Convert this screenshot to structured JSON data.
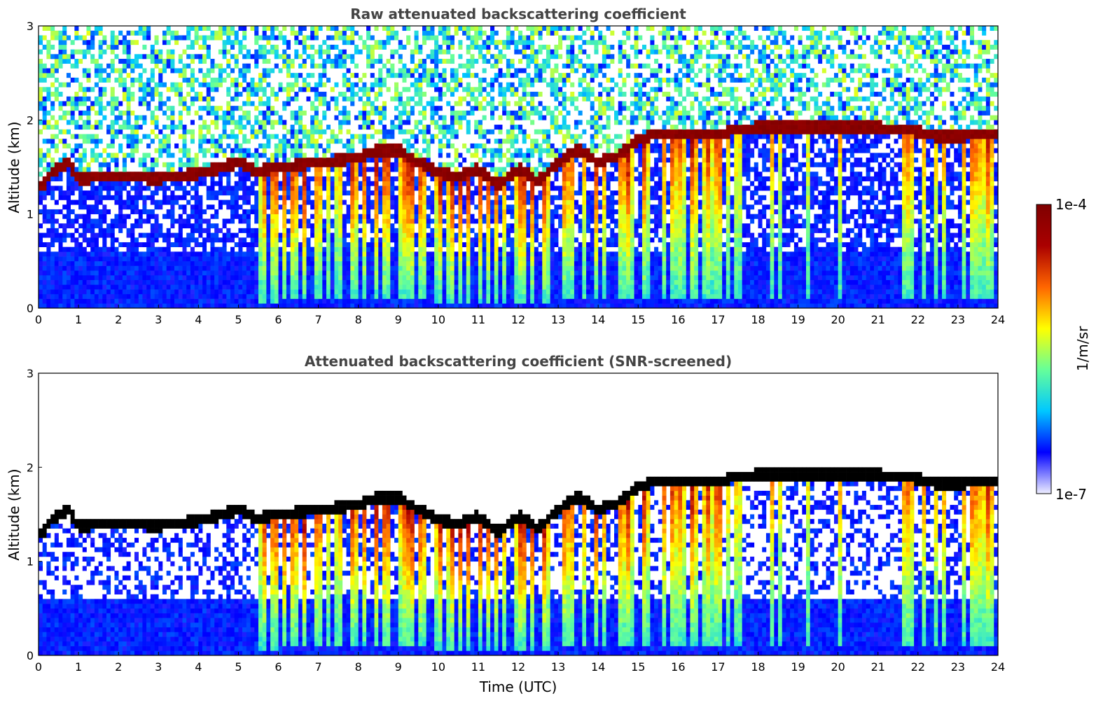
{
  "chart_data": [
    {
      "type": "heatmap",
      "title": "Raw attenuated backscattering coefficient",
      "xlabel": "",
      "ylabel": "Altitude (km)",
      "xlim": [
        0,
        24
      ],
      "ylim": [
        0,
        3
      ],
      "xticks": [
        "0",
        "1",
        "2",
        "3",
        "4",
        "5",
        "6",
        "7",
        "8",
        "9",
        "10",
        "11",
        "12",
        "13",
        "14",
        "15",
        "16",
        "17",
        "18",
        "19",
        "20",
        "21",
        "22",
        "23",
        "24"
      ],
      "yticks": [
        "0",
        "1",
        "2",
        "3"
      ],
      "screened": false,
      "cloud_base_km": [
        {
          "t": 0.1,
          "h": 1.3
        },
        {
          "t": 0.4,
          "h": 1.47
        },
        {
          "t": 0.75,
          "h": 1.55
        },
        {
          "t": 1.0,
          "h": 1.38
        },
        {
          "t": 2.0,
          "h": 1.4
        },
        {
          "t": 3.0,
          "h": 1.38
        },
        {
          "t": 4.0,
          "h": 1.43
        },
        {
          "t": 4.6,
          "h": 1.5
        },
        {
          "t": 5.0,
          "h": 1.55
        },
        {
          "t": 5.5,
          "h": 1.45
        },
        {
          "t": 6.0,
          "h": 1.5
        },
        {
          "t": 6.5,
          "h": 1.52
        },
        {
          "t": 7.0,
          "h": 1.55
        },
        {
          "t": 7.5,
          "h": 1.57
        },
        {
          "t": 8.0,
          "h": 1.6
        },
        {
          "t": 8.5,
          "h": 1.68
        },
        {
          "t": 9.0,
          "h": 1.68
        },
        {
          "t": 9.5,
          "h": 1.55
        },
        {
          "t": 10.0,
          "h": 1.45
        },
        {
          "t": 10.5,
          "h": 1.4
        },
        {
          "t": 11.0,
          "h": 1.48
        },
        {
          "t": 11.5,
          "h": 1.3
        },
        {
          "t": 12.0,
          "h": 1.48
        },
        {
          "t": 12.5,
          "h": 1.35
        },
        {
          "t": 13.0,
          "h": 1.55
        },
        {
          "t": 13.5,
          "h": 1.7
        },
        {
          "t": 14.0,
          "h": 1.55
        },
        {
          "t": 14.5,
          "h": 1.62
        },
        {
          "t": 15.0,
          "h": 1.8
        },
        {
          "t": 15.5,
          "h": 1.85
        },
        {
          "t": 16.0,
          "h": 1.85
        },
        {
          "t": 17.0,
          "h": 1.85
        },
        {
          "t": 17.5,
          "h": 1.9
        },
        {
          "t": 18.0,
          "h": 1.92
        },
        {
          "t": 19.0,
          "h": 1.92
        },
        {
          "t": 20.0,
          "h": 1.92
        },
        {
          "t": 21.0,
          "h": 1.92
        },
        {
          "t": 22.0,
          "h": 1.88
        },
        {
          "t": 22.5,
          "h": 1.82
        },
        {
          "t": 23.0,
          "h": 1.83
        },
        {
          "t": 24.0,
          "h": 1.85
        }
      ]
    },
    {
      "type": "heatmap",
      "title": "Attenuated backscattering coefficient (SNR-screened)",
      "xlabel": "Time (UTC)",
      "ylabel": "Altitude (km)",
      "xlim": [
        0,
        24
      ],
      "ylim": [
        0,
        3
      ],
      "xticks": [
        "0",
        "1",
        "2",
        "3",
        "4",
        "5",
        "6",
        "7",
        "8",
        "9",
        "10",
        "11",
        "12",
        "13",
        "14",
        "15",
        "16",
        "17",
        "18",
        "19",
        "20",
        "21",
        "22",
        "23",
        "24"
      ],
      "yticks": [
        "0",
        "1",
        "2",
        "3"
      ],
      "screened": true
    }
  ],
  "colorbar": {
    "label": "1/m/sr",
    "max_label": "1e-4",
    "min_label": "1e-7",
    "min_value": 1e-07,
    "max_value": 0.0001,
    "colormap": [
      "#eeeeff",
      "#0000ff",
      "#00c8ff",
      "#66ff99",
      "#ffff00",
      "#ff6600",
      "#aa0000",
      "#7f0000"
    ]
  }
}
